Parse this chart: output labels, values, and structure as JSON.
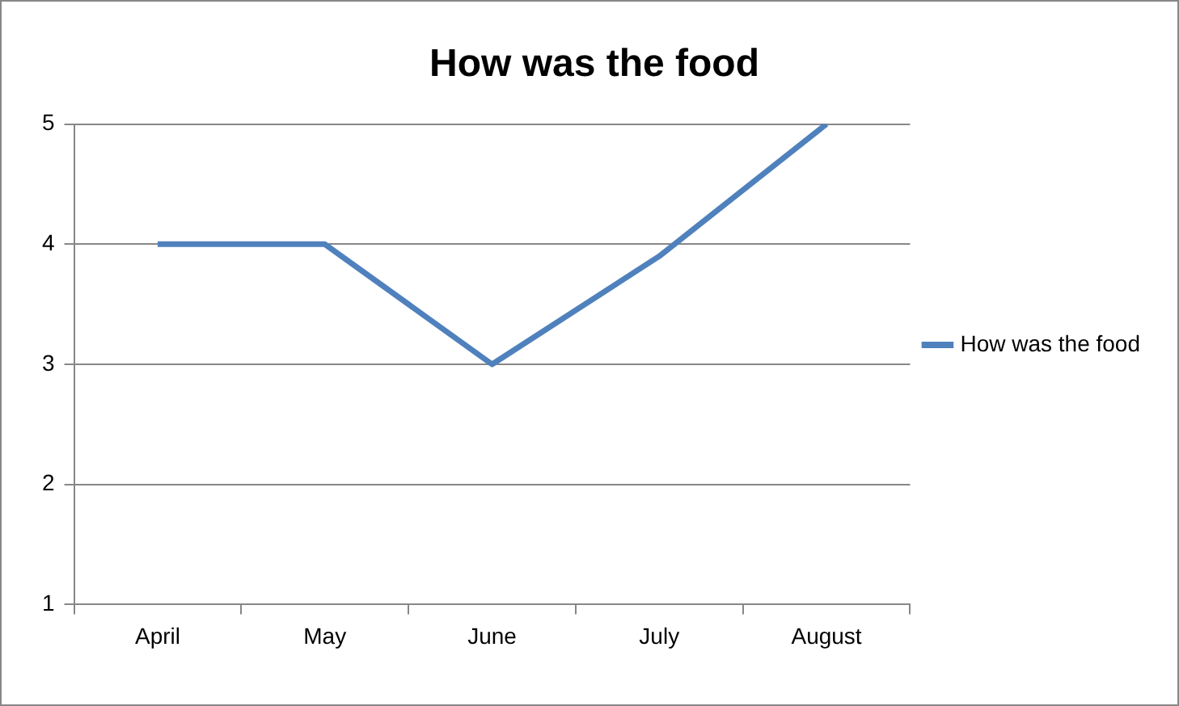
{
  "chart_data": {
    "type": "line",
    "title": "How was the food",
    "categories": [
      "April",
      "May",
      "June",
      "July",
      "August"
    ],
    "series": [
      {
        "name": "How was the food",
        "color": "#4f81bd",
        "values": [
          4,
          4,
          3,
          3.9,
          5
        ]
      }
    ],
    "ylim": [
      1,
      5
    ],
    "yticks": [
      1,
      2,
      3,
      4,
      5
    ],
    "grid": "y",
    "legend": "right",
    "marker": "none"
  }
}
